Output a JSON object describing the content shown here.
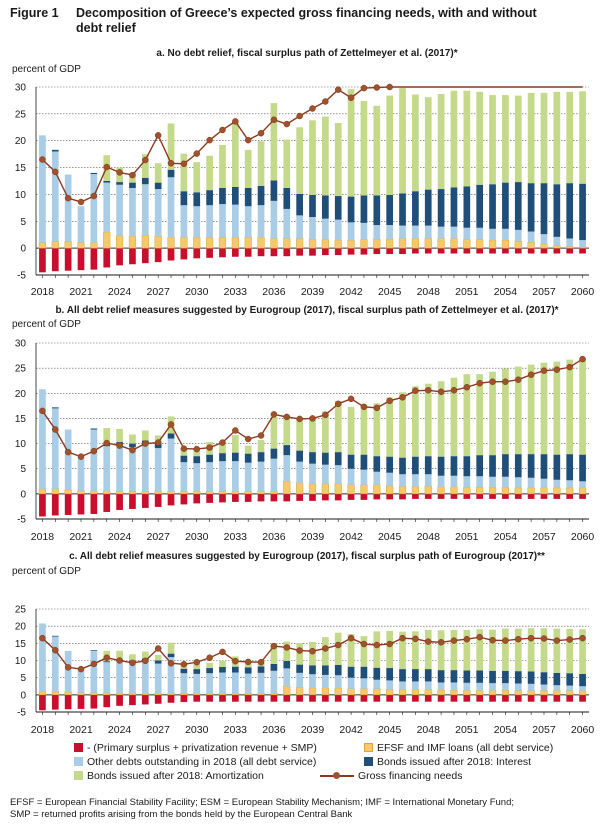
{
  "figure": {
    "label": "Figure 1",
    "title_line1": "Decomposition of Greece’s expected gross financing needs, with and without",
    "title_line2": "debt relief"
  },
  "legend": {
    "items": [
      {
        "key": "primary",
        "label": "- (Primary surplus + privatization revenue + SMP)",
        "color": "#c8102e",
        "type": "bar"
      },
      {
        "key": "efsf",
        "label": "EFSF and IMF loans (all debt service)",
        "color": "#f3c96b",
        "type": "bar"
      },
      {
        "key": "other",
        "label": "Other debts outstanding in 2018 (all debt service)",
        "color": "#a9cde6",
        "type": "bar"
      },
      {
        "key": "interest",
        "label": "Bonds issued after 2018: Interest",
        "color": "#1f4e79",
        "type": "bar"
      },
      {
        "key": "amort",
        "label": "Bonds issued after 2018: Amortization",
        "color": "#c5d98a",
        "type": "bar"
      },
      {
        "key": "gfn",
        "label": "Gross financing needs",
        "color": "#a0522d",
        "type": "line"
      }
    ]
  },
  "footnote": {
    "line1": "EFSF = European Financial Stability Facility; ESM = European Stability Mechanism; IMF = International Monetary Fund;",
    "line2": "SMP = returned profits arising from the bonds held by the European Central Bank"
  },
  "chart_data": [
    {
      "type": "bar",
      "title": "a. No debt relief, fiscal surplus path of Zettelmeyer et al. (2017)*",
      "ylabel": "percent of GDP",
      "ylim": [
        -5,
        30
      ],
      "yticks": [
        -5,
        0,
        5,
        10,
        15,
        20,
        25,
        30
      ],
      "xticks": [
        "2018",
        "2021",
        "2024",
        "2027",
        "2030",
        "2033",
        "2036",
        "2039",
        "2042",
        "2045",
        "2048",
        "2051",
        "2054",
        "2057",
        "2060"
      ],
      "x_start": 2018,
      "x_end": 2060,
      "stacked": true,
      "series": [
        {
          "name": "- (Primary surplus + privatization revenue + SMP)",
          "values": [
            -4.5,
            -4.3,
            -4.2,
            -4.1,
            -4,
            -3.6,
            -3.2,
            -3,
            -2.8,
            -2.6,
            -2.3,
            -2.1,
            -1.9,
            -1.8,
            -1.7,
            -1.6,
            -1.6,
            -1.5,
            -1.5,
            -1.5,
            -1.4,
            -1.4,
            -1.3,
            -1.3,
            -1.2,
            -1.2,
            -1.1,
            -1.1,
            -1.1,
            -1,
            -1,
            -1,
            -1,
            -1,
            -1,
            -1,
            -1,
            -1,
            -1,
            -1,
            -1,
            -1,
            -1
          ]
        },
        {
          "name": "EFSF and IMF loans (all debt service)",
          "values": [
            1,
            1.2,
            1.2,
            1,
            1,
            3,
            2.3,
            2.2,
            2.4,
            2.2,
            2,
            2,
            2,
            2,
            2,
            2,
            2,
            2,
            1.8,
            1.8,
            1.8,
            1.7,
            1.6,
            1.5,
            1.5,
            1.6,
            1.7,
            1.7,
            1.8,
            1.8,
            1.8,
            1.8,
            1.8,
            1.6,
            1.6,
            1.5,
            1.5,
            1.3,
            1.1,
            0.8,
            0.5,
            0.3,
            0.2
          ]
        },
        {
          "name": "Other debts outstanding in 2018 (all debt service)",
          "values": [
            20,
            16.8,
            12.5,
            6.8,
            12.8,
            9.2,
            9.5,
            9,
            9.5,
            8.8,
            11.2,
            6,
            5.8,
            6,
            6.2,
            6.1,
            5.8,
            6,
            7,
            5.5,
            4.3,
            4.1,
            3.9,
            3.8,
            3.3,
            3.1,
            2.6,
            2.6,
            2.4,
            2.4,
            2.4,
            2.2,
            2.2,
            2.2,
            2.2,
            2.1,
            2.1,
            2.1,
            2.0,
            1.8,
            1.6,
            1.5,
            1.3
          ]
        },
        {
          "name": "Bonds issued after 2018: Interest",
          "values": [
            0,
            0.3,
            0,
            0,
            0.2,
            0.3,
            0.5,
            1,
            1.2,
            1.2,
            1.4,
            2.6,
            2.6,
            2.8,
            3,
            3.3,
            3.4,
            3.6,
            3.8,
            3.9,
            4,
            4.1,
            4.3,
            4.4,
            4.8,
            5.1,
            5.5,
            5.6,
            6,
            6.4,
            6.7,
            7,
            7.3,
            7.7,
            8,
            8.3,
            8.6,
            8.9,
            9,
            9.5,
            9.8,
            10.3,
            10.5
          ]
        },
        {
          "name": "Bonds issued after 2018: Amortization",
          "values": [
            0,
            0,
            0,
            0,
            0,
            4.8,
            2.7,
            1.8,
            4.4,
            3.6,
            8.6,
            7,
            5.6,
            6.4,
            8,
            12.1,
            7.1,
            8.3,
            14.4,
            9,
            12.4,
            13.9,
            14.7,
            13.6,
            20,
            17.6,
            16.7,
            18.5,
            19.6,
            18,
            17.2,
            17.7,
            18,
            17.8,
            17.3,
            16.6,
            16.3,
            16.1,
            16.8,
            16.8,
            17.2,
            17,
            17.2
          ]
        }
      ],
      "gfn": [
        16.5,
        14.2,
        9.3,
        8.6,
        9.7,
        15.1,
        14.1,
        13.6,
        16.4,
        21,
        15.8,
        15.7,
        17.6,
        20.1,
        22,
        23.6,
        20.1,
        21.4,
        23.9,
        23.1,
        24.6,
        26,
        27.3,
        29.5,
        28,
        29.8,
        29.9,
        30,
        30,
        30,
        30,
        30,
        30,
        30,
        30,
        30,
        30,
        30,
        30,
        30,
        30,
        30,
        30
      ],
      "gfn_markers": [
        0,
        1,
        2,
        3,
        4,
        5,
        6,
        7,
        8,
        9,
        10,
        11,
        12,
        13,
        14,
        15,
        16,
        17,
        18,
        19,
        20,
        21,
        22,
        23,
        24,
        25,
        26,
        27
      ]
    },
    {
      "type": "bar",
      "title": "b. All debt relief measures suggested by Eurogroup (2017), fiscal surplus path of Zettelmeyer et al. (2017)*",
      "ylabel": "percent of GDP",
      "ylim": [
        -5,
        30
      ],
      "yticks": [
        -5,
        0,
        5,
        10,
        15,
        20,
        25,
        30
      ],
      "xticks": [
        "2018",
        "2021",
        "2024",
        "2027",
        "2030",
        "2033",
        "2036",
        "2039",
        "2042",
        "2045",
        "2048",
        "2051",
        "2054",
        "2057",
        "2060"
      ],
      "x_start": 2018,
      "x_end": 2060,
      "stacked": true,
      "series": [
        {
          "name": "- (Primary surplus + privatization revenue + SMP)",
          "values": [
            -4.5,
            -4.3,
            -4.2,
            -4.1,
            -4,
            -3.6,
            -3.2,
            -3,
            -2.8,
            -2.6,
            -2.3,
            -2.1,
            -1.9,
            -1.8,
            -1.7,
            -1.6,
            -1.6,
            -1.5,
            -1.5,
            -1.5,
            -1.4,
            -1.4,
            -1.3,
            -1.3,
            -1.2,
            -1.2,
            -1.1,
            -1.1,
            -1.1,
            -1,
            -1,
            -1,
            -1,
            -1,
            -1,
            -1,
            -1,
            -1,
            -1,
            -1,
            -1,
            -1,
            -1
          ]
        },
        {
          "name": "EFSF and IMF loans (all debt service)",
          "values": [
            1,
            1,
            0.8,
            0.6,
            0.6,
            0.6,
            0.5,
            0.5,
            0.5,
            0.5,
            0.5,
            0.5,
            0.5,
            0.5,
            0.5,
            0.5,
            0.5,
            0.5,
            0.5,
            2.5,
            2.2,
            2,
            2,
            2,
            1.8,
            1.8,
            1.8,
            1.6,
            1.5,
            1.5,
            1.5,
            1.4,
            1.4,
            1.3,
            1.3,
            1.3,
            1.3,
            1.2,
            1.2,
            1.2,
            1.2,
            1.2,
            1.2
          ]
        },
        {
          "name": "Other debts outstanding in 2018 (all debt service)",
          "values": [
            19.8,
            16,
            12,
            6.6,
            12.2,
            8.9,
            9.3,
            8.8,
            9.3,
            8.6,
            10.5,
            5.8,
            5.6,
            5.8,
            6,
            6,
            5.7,
            5.9,
            6.5,
            5.2,
            4.2,
            4,
            3.8,
            3.7,
            3.2,
            3,
            2.6,
            2.6,
            2.4,
            2.4,
            2.4,
            2.2,
            2.2,
            2.2,
            2.2,
            2.1,
            2.1,
            2.1,
            2.0,
            1.8,
            1.6,
            1.5,
            1.3
          ]
        },
        {
          "name": "Bonds issued after 2018: Interest",
          "values": [
            0,
            0.2,
            0,
            0,
            0.2,
            0.3,
            0.5,
            0.7,
            0.8,
            0.9,
            1.0,
            1.3,
            1.4,
            1.5,
            1.6,
            1.7,
            1.8,
            1.9,
            2,
            2,
            2.2,
            2.3,
            2.4,
            2.6,
            2.8,
            3,
            3.1,
            3.2,
            3.3,
            3.5,
            3.6,
            3.8,
            3.9,
            4,
            4.2,
            4.3,
            4.5,
            4.6,
            4.7,
            4.9,
            5,
            5.2,
            5.3
          ]
        },
        {
          "name": "Bonds issued after 2018: Amortization",
          "values": [
            0,
            0,
            0,
            0,
            0,
            3.3,
            2.6,
            1.8,
            2,
            1.6,
            3.4,
            1.5,
            1.6,
            2.5,
            2.2,
            3.5,
            1.6,
            2.4,
            6.3,
            5.6,
            6.4,
            7,
            8.2,
            10.2,
            9.5,
            10,
            10.5,
            11.8,
            13,
            14,
            14.4,
            15,
            15.6,
            16.3,
            16.1,
            16.6,
            17,
            17.4,
            17.8,
            18.2,
            18.5,
            18.8,
            19.2
          ]
        }
      ],
      "gfn": [
        16.5,
        12.8,
        8.3,
        7.4,
        8.5,
        10.1,
        9.6,
        8.7,
        10,
        10.2,
        13.8,
        9,
        8.9,
        9.2,
        10.2,
        12.6,
        10.9,
        11.6,
        15.8,
        15.3,
        14.9,
        15,
        15.7,
        17.9,
        18.9,
        17.3,
        17.1,
        18.5,
        19.2,
        20.5,
        20.6,
        20.3,
        20.6,
        21.2,
        22,
        22.3,
        22.3,
        22.7,
        23.7,
        24.5,
        24.7,
        25.2,
        26.8
      ],
      "gfn_markers": "all"
    },
    {
      "type": "bar",
      "title": "c. All debt relief measures suggested by Eurogroup (2017), fiscal surplus path of Eurogroup (2017)**",
      "ylabel": "percent of GDP",
      "ylim": [
        -5,
        25
      ],
      "yticks": [
        -5,
        0,
        5,
        10,
        15,
        20,
        25
      ],
      "xticks": [
        "2018",
        "2021",
        "2024",
        "2027",
        "2030",
        "2033",
        "2036",
        "2039",
        "2042",
        "2045",
        "2048",
        "2051",
        "2054",
        "2057",
        "2060"
      ],
      "x_start": 2018,
      "x_end": 2060,
      "stacked": true,
      "series": [
        {
          "name": "- (Primary surplus + privatization revenue + SMP)",
          "values": [
            -4.5,
            -4.3,
            -4.2,
            -4.1,
            -4,
            -3.6,
            -3.2,
            -3,
            -2.8,
            -2.6,
            -2.3,
            -2.1,
            -2,
            -2,
            -2,
            -2,
            -2,
            -2,
            -2,
            -2,
            -2,
            -2,
            -2,
            -2,
            -2,
            -2,
            -2,
            -2,
            -2,
            -2,
            -2,
            -2,
            -2,
            -2,
            -2,
            -2,
            -2,
            -2,
            -2,
            -2,
            -2,
            -2,
            -2
          ]
        },
        {
          "name": "EFSF and IMF loans (all debt service)",
          "values": [
            1,
            1,
            0.8,
            0.6,
            0.6,
            0.6,
            0.5,
            0.5,
            0.5,
            0.5,
            0.5,
            0.5,
            0.5,
            0.5,
            0.5,
            0.5,
            0.5,
            0.5,
            0.5,
            2.5,
            2.2,
            2,
            2,
            2,
            1.8,
            1.8,
            1.8,
            1.6,
            1.5,
            1.5,
            1.5,
            1.4,
            1.4,
            1.3,
            1.3,
            1.3,
            1.3,
            1.2,
            1.2,
            1.2,
            1.2,
            1.2,
            1.2
          ]
        },
        {
          "name": "Other debts outstanding in 2018 (all debt service)",
          "values": [
            19.8,
            16,
            12,
            6.6,
            12.2,
            8.9,
            9.3,
            8.8,
            9.3,
            8.6,
            10.5,
            5.8,
            5.6,
            5.8,
            6,
            6,
            5.7,
            5.9,
            6.5,
            5.2,
            4.2,
            4,
            3.8,
            3.7,
            3.2,
            3,
            2.6,
            2.6,
            2.4,
            2.4,
            2.4,
            2.2,
            2.2,
            2.2,
            2.2,
            2.1,
            2.1,
            2.1,
            2.0,
            1.8,
            1.6,
            1.5,
            1.3
          ]
        },
        {
          "name": "Bonds issued after 2018: Interest",
          "values": [
            0,
            0.2,
            0,
            0,
            0.2,
            0.3,
            0.5,
            0.7,
            0.8,
            0.9,
            1.0,
            1.3,
            1.4,
            1.5,
            1.6,
            1.7,
            1.8,
            1.9,
            2,
            2.2,
            2.4,
            2.6,
            2.8,
            3,
            3.2,
            3.4,
            3.5,
            3.6,
            3.6,
            3.6,
            3.6,
            3.6,
            3.6,
            3.6,
            3.6,
            3.6,
            3.6,
            3.6,
            3.6,
            3.6,
            3.6,
            3.6,
            3.6
          ]
        },
        {
          "name": "Bonds issued after 2018: Amortization",
          "values": [
            0,
            0,
            0,
            0,
            0,
            3,
            2.5,
            1.8,
            2,
            1.6,
            3.2,
            1.5,
            1.5,
            1.5,
            1.8,
            3,
            1.3,
            1.8,
            6,
            5.6,
            6.3,
            6.8,
            8.2,
            9.4,
            9.5,
            8.9,
            10.6,
            10.8,
            10.9,
            11,
            11.4,
            11.6,
            11.7,
            11.8,
            12,
            12,
            12.3,
            12.4,
            12.6,
            12.8,
            12.9,
            12.9,
            13
          ]
        }
      ],
      "gfn": [
        16.5,
        13,
        8,
        7.5,
        9,
        10.8,
        10,
        9.3,
        9.9,
        13.5,
        9.2,
        8.9,
        9.5,
        10.8,
        12.5,
        9.8,
        9.6,
        9.5,
        14.2,
        13.8,
        12.9,
        12.7,
        13.5,
        14.5,
        16.5,
        14.8,
        14.5,
        14.8,
        16.5,
        16.3,
        15.5,
        15.3,
        15.8,
        16.2,
        16.8,
        15.9,
        15.8,
        16.2,
        16.5,
        16.4,
        15.8,
        16.1,
        16.5
      ],
      "gfn_markers": "all"
    }
  ]
}
